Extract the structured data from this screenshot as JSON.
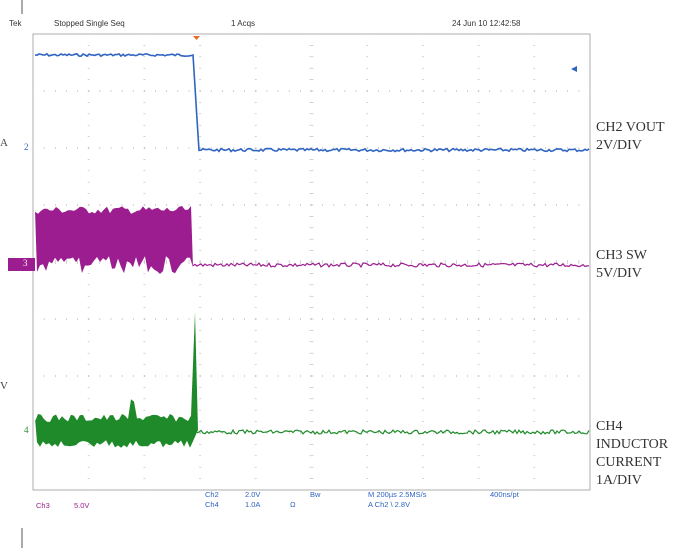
{
  "header": {
    "brand": "Tek",
    "status": "Stopped  Single Seq",
    "acqs": "1 Acqs",
    "timestamp": "24 Jun 10 12:42:58"
  },
  "channels": [
    {
      "id": "ch2",
      "label_lines": [
        "CH2 VOUT",
        "2V/DIV"
      ],
      "color": "#2f64c2"
    },
    {
      "id": "ch3",
      "label_lines": [
        "CH3 SW",
        "5V/DIV"
      ],
      "color": "#9b1d8f"
    },
    {
      "id": "ch4",
      "label_lines": [
        "CH4",
        "INDUCTOR",
        "CURRENT",
        "1A/DIV"
      ],
      "color": "#1f8a2a"
    }
  ],
  "markers": {
    "ch2": "2",
    "ch3": "3",
    "ch4": "4",
    "left_a": "A",
    "left_v": "V"
  },
  "footer": {
    "ch3_label": "Ch3",
    "ch3_scale": "5.0V",
    "ch2_label": "Ch2",
    "ch2_scale": "2.0V",
    "ch4_label": "Ch4",
    "ch4_scale": "1.0A",
    "omega": "Ω",
    "bw": "Bw",
    "timebase": "M 200µs  2.5MS/s",
    "trigger": "A  Ch2  \\  2.8V",
    "record": "400ns/pt"
  }
}
